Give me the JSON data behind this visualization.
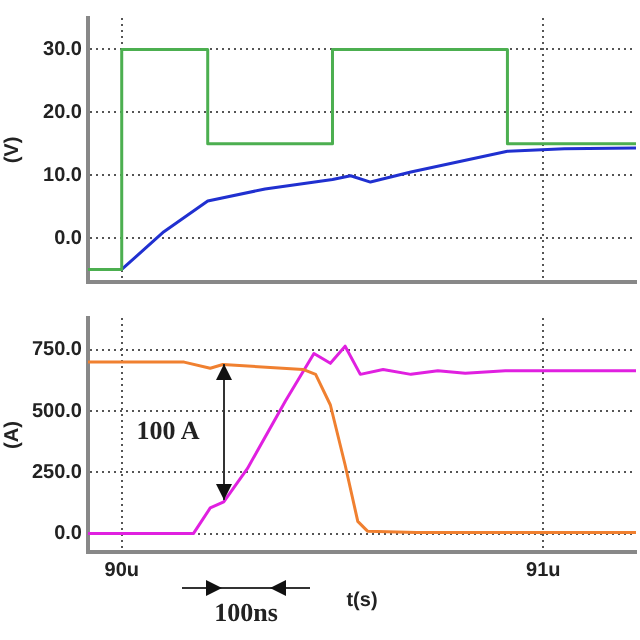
{
  "chart_data": [
    {
      "type": "line",
      "ylabel": "(V)",
      "xlim": [
        89.92,
        91.22
      ],
      "xticks": [
        90,
        91
      ],
      "ylim": [
        -7,
        35
      ],
      "yticks": [
        {
          "value": 0,
          "label": "0.0"
        },
        {
          "value": 10,
          "label": "10.0"
        },
        {
          "value": 20,
          "label": "20.0"
        },
        {
          "value": 30,
          "label": "30.0"
        }
      ],
      "grid": true,
      "legend": false,
      "tick_labels": "y",
      "series": [
        {
          "type": "step",
          "color": "#4caf50",
          "x": [
            89.92,
            90.0,
            90.204,
            90.5,
            90.915,
            91.22
          ],
          "values": [
            -5,
            30,
            15,
            30,
            15,
            15
          ]
        },
        {
          "type": "line",
          "color": "#2030d0",
          "x": [
            89.92,
            90.0,
            90.1,
            90.204,
            90.34,
            90.5,
            90.543,
            90.59,
            90.686,
            90.915,
            91.05,
            91.22
          ],
          "values": [
            -5,
            -5,
            1,
            5.9,
            7.8,
            9.3,
            9.9,
            8.9,
            10.5,
            13.8,
            14.2,
            14.3
          ]
        }
      ]
    },
    {
      "type": "line",
      "xlabel": "t(s)",
      "ylabel": "(A)",
      "xlim": [
        89.92,
        91.22
      ],
      "xticks": [
        {
          "value": 90,
          "label": "90u"
        },
        {
          "value": 91,
          "label": "91u"
        }
      ],
      "ylim": [
        -75,
        880
      ],
      "yticks": [
        {
          "value": 0,
          "label": "0.0"
        },
        {
          "value": 250,
          "label": "250.0"
        },
        {
          "value": 500,
          "label": "500.0"
        },
        {
          "value": 750,
          "label": "750.0"
        }
      ],
      "grid": true,
      "legend": false,
      "annotations": [
        "100 A",
        "100ns"
      ],
      "series": [
        {
          "type": "line",
          "color": "#f08030",
          "x": [
            89.92,
            90.148,
            90.21,
            90.24,
            90.43,
            90.46,
            90.495,
            90.53,
            90.56,
            90.583,
            90.7,
            90.9,
            91.22
          ],
          "values": [
            700,
            700,
            675,
            690,
            670,
            650,
            525,
            280,
            50,
            10,
            5,
            5,
            5
          ]
        },
        {
          "type": "line",
          "color": "#e020e0",
          "x": [
            89.92,
            90.17,
            90.21,
            90.242,
            90.298,
            90.388,
            90.456,
            90.495,
            90.53,
            90.566,
            90.62,
            90.686,
            90.75,
            90.815,
            90.91,
            91.22
          ],
          "values": [
            0,
            0,
            105,
            130,
            265,
            540,
            735,
            695,
            765,
            650,
            670,
            650,
            665,
            655,
            665,
            665
          ]
        }
      ]
    }
  ]
}
